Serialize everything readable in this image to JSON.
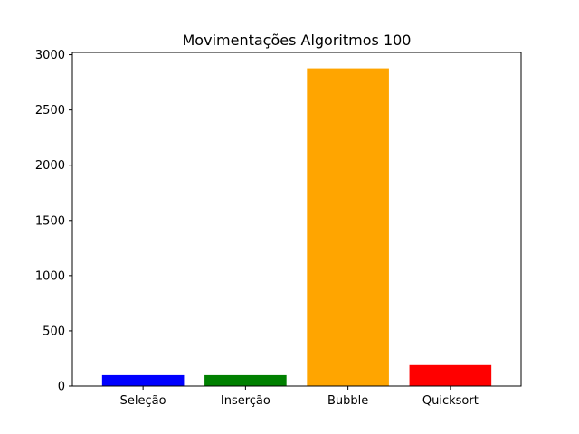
{
  "chart_data": {
    "type": "bar",
    "title": "Movimentações Algoritmos 100",
    "xlabel": "",
    "ylabel": "",
    "categories": [
      "Seleção",
      "Inserção",
      "Bubble",
      "Quicksort"
    ],
    "values": [
      99,
      99,
      2877,
      190
    ],
    "colors": [
      "#0000ff",
      "#008000",
      "#ffa500",
      "#ff0000"
    ],
    "ylim": [
      0,
      3021
    ],
    "yticks": [
      0,
      500,
      1000,
      1500,
      2000,
      2500,
      3000
    ],
    "grid": false
  }
}
